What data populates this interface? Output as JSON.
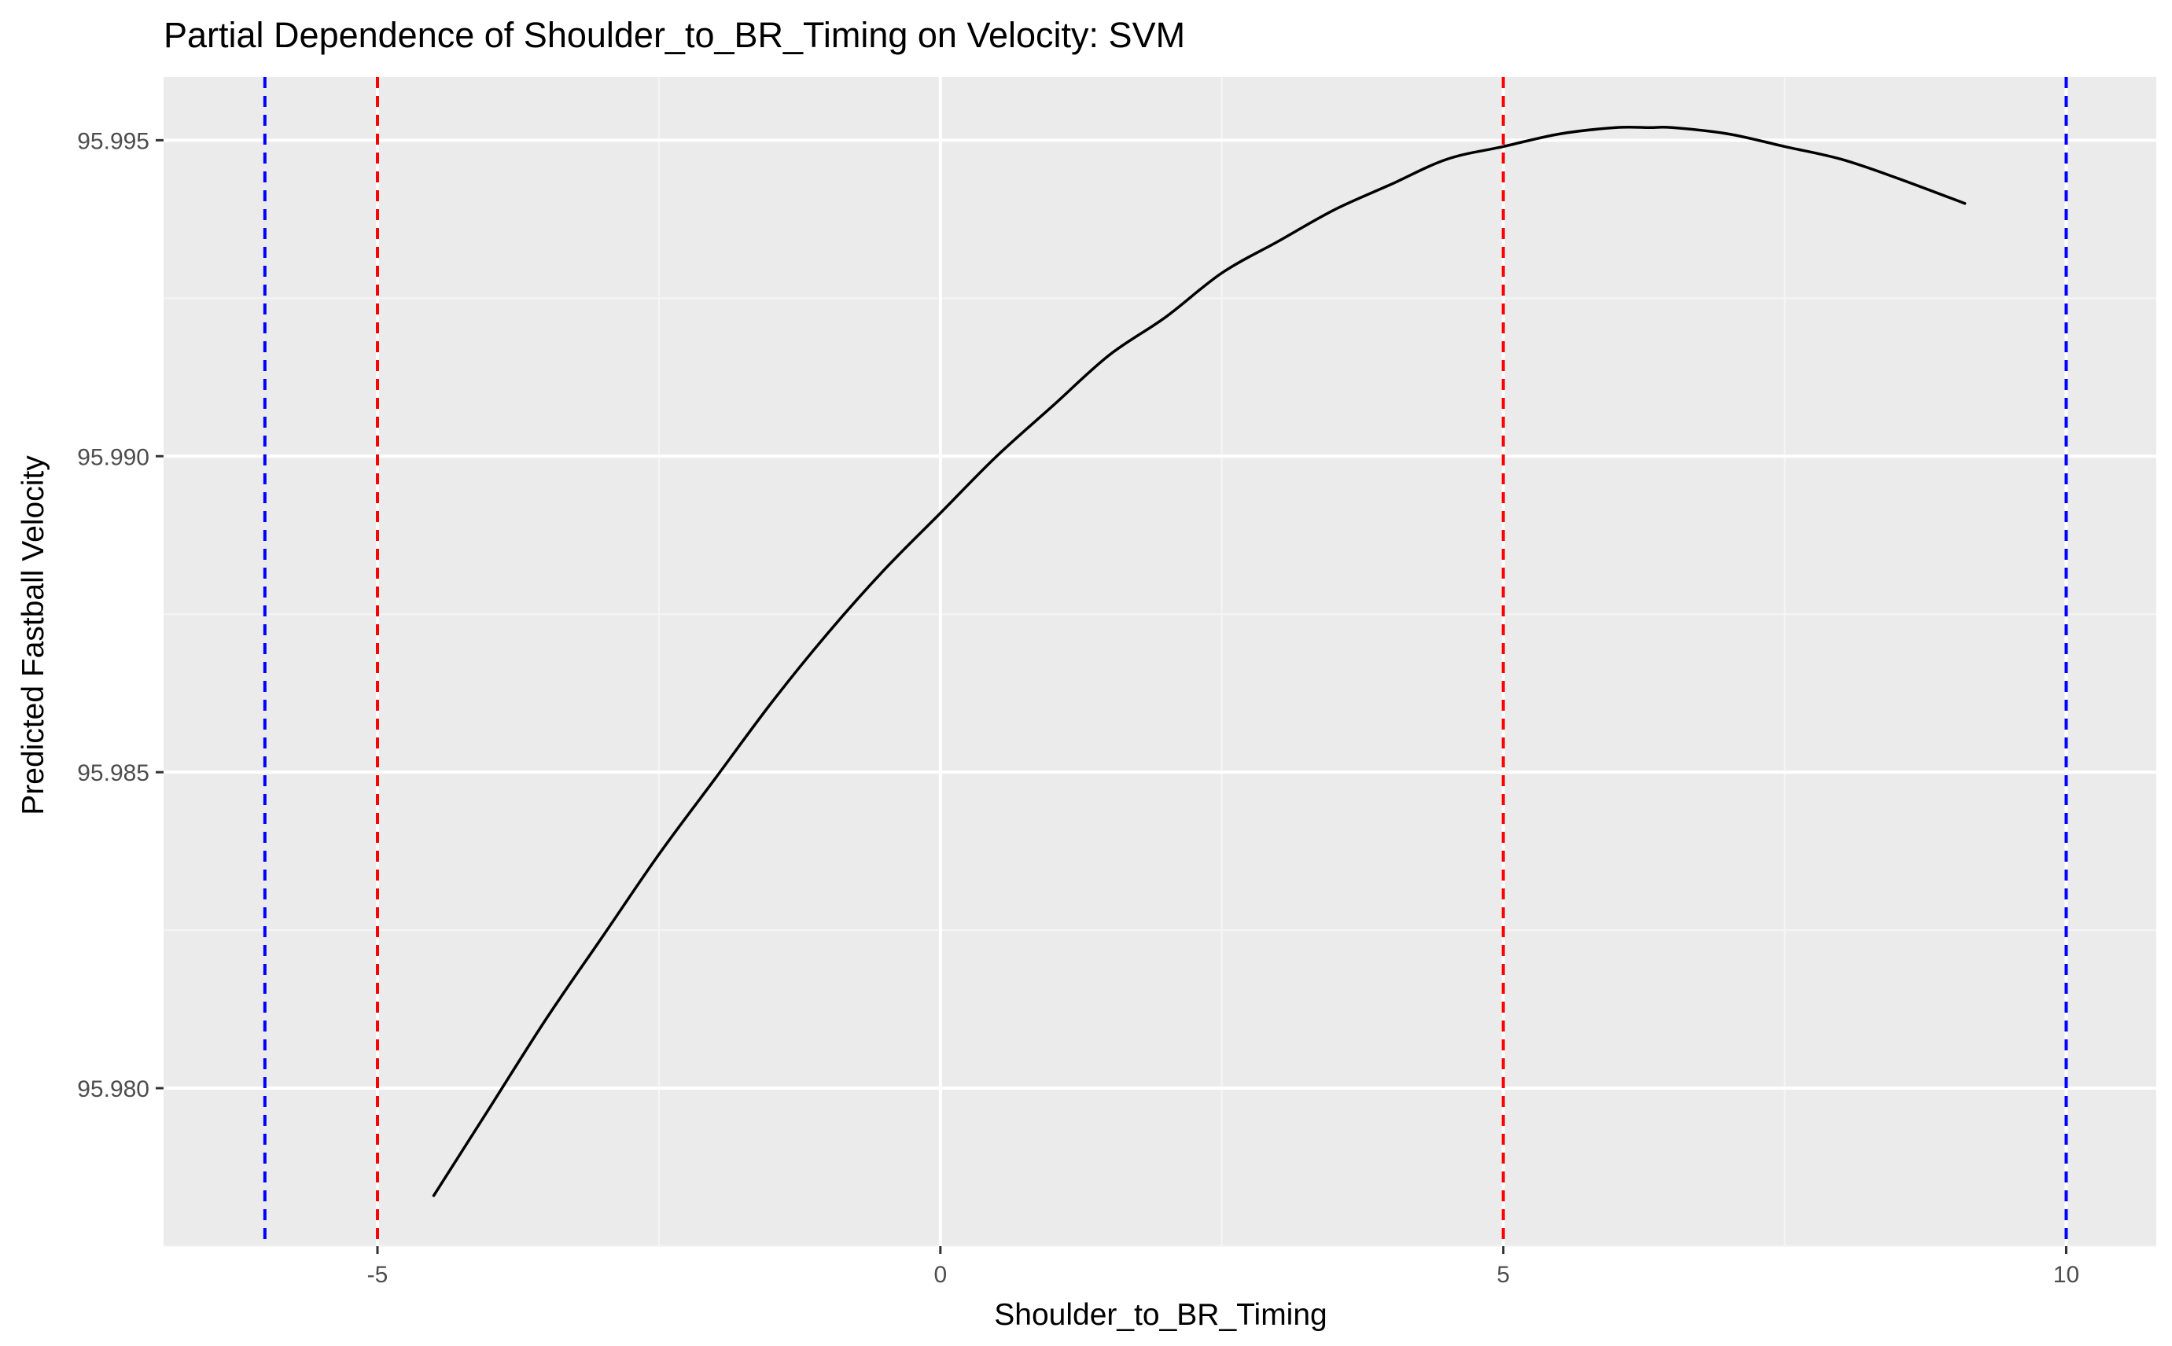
{
  "chart_data": {
    "type": "line",
    "title": "Partial Dependence of Shoulder_to_BR_Timing on Velocity: SVM",
    "xlabel": "Shoulder_to_BR_Timing",
    "ylabel": "Predicted Fastball Velocity",
    "xlim": [
      -6.9,
      10.8
    ],
    "ylim": [
      95.9775,
      95.996
    ],
    "x_ticks": [
      {
        "value": -5,
        "label": "-5"
      },
      {
        "value": 0,
        "label": "0"
      },
      {
        "value": 5,
        "label": "5"
      },
      {
        "value": 10,
        "label": "10"
      }
    ],
    "y_ticks": [
      {
        "value": 95.98,
        "label": "95.980"
      },
      {
        "value": 95.985,
        "label": "95.985"
      },
      {
        "value": 95.99,
        "label": "95.990"
      },
      {
        "value": 95.995,
        "label": "95.995"
      }
    ],
    "grid": true,
    "series": [
      {
        "color": "#000000",
        "x": [
          -4.5,
          -4.0,
          -3.5,
          -3.0,
          -2.5,
          -2.0,
          -1.5,
          -1.0,
          -0.5,
          0.0,
          0.5,
          1.0,
          1.5,
          2.0,
          2.5,
          3.0,
          3.5,
          4.0,
          4.5,
          5.0,
          5.5,
          6.0,
          6.3,
          6.5,
          7.0,
          7.5,
          8.0,
          8.5,
          9.1
        ],
        "y": [
          95.9783,
          95.9797,
          95.9811,
          95.9824,
          95.9837,
          95.9849,
          95.9861,
          95.9872,
          95.9882,
          95.9891,
          95.99,
          95.9908,
          95.9916,
          95.9922,
          95.9929,
          95.9934,
          95.9939,
          95.9943,
          95.9947,
          95.9949,
          95.9951,
          95.9952,
          95.9952,
          95.9952,
          95.9951,
          95.9949,
          95.9947,
          95.9944,
          95.994
        ]
      }
    ],
    "reference_lines": [
      {
        "x": -6.0,
        "color": "#0000ff",
        "style": "dashed"
      },
      {
        "x": -5.0,
        "color": "#ff0000",
        "style": "dashed"
      },
      {
        "x": 5.0,
        "color": "#ff0000",
        "style": "dashed"
      },
      {
        "x": 10.0,
        "color": "#0000ff",
        "style": "dashed"
      }
    ],
    "colors": {
      "panel_background": "#ebebeb",
      "grid_major": "#ffffff",
      "grid_minor": "#f5f5f5",
      "tick_label": "#4d4d4d",
      "tick_mark": "#333333"
    }
  }
}
